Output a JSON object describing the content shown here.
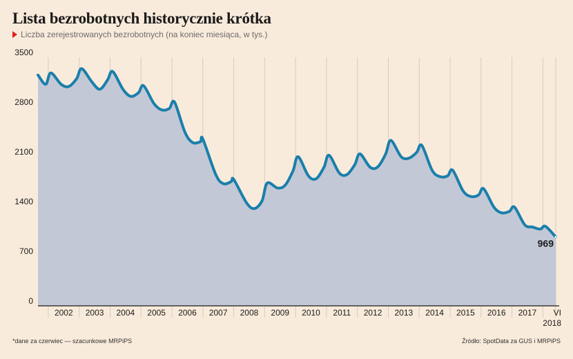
{
  "title": "Lista bezrobotnych historycznie krótka",
  "subtitle": "Liczba zerejestrowanych bezrobotnych (na koniec miesiąca, w tys.)",
  "footnote": "*dane za czerwiec — szacunkowe MRPiPS",
  "source": "Źródło: SpotData za GUS i MRPiPS",
  "colors": {
    "line": "#1a7fab",
    "area": "#c3c8d6",
    "background": "#f9ebdb",
    "accent": "#e0201b"
  },
  "chart_data": {
    "type": "area",
    "title": "Lista bezrobotnych historycznie krótka",
    "subtitle": "Liczba zerejestrowanych bezrobotnych (na koniec miesiąca, w tys.)",
    "xlabel": "",
    "ylabel": "",
    "ylim": [
      0,
      3500
    ],
    "yticks": [
      0,
      700,
      1400,
      2100,
      2800,
      3500
    ],
    "ytick_labels": [
      "0",
      "700",
      "1400",
      "2100",
      "2800",
      "3500"
    ],
    "xtick_labels": [
      "2002",
      "2003",
      "2004",
      "2005",
      "2006",
      "2007",
      "2008",
      "2009",
      "2010",
      "2011",
      "2012",
      "2013",
      "2014",
      "2015",
      "2016",
      "2017",
      "VI"
    ],
    "xtick_sublabel": "2018",
    "grid": "vertical",
    "last_value_label": "969",
    "series": [
      {
        "points": [
          [
            "2001-09",
            3250
          ],
          [
            "2001-12",
            3120
          ],
          [
            "2002-02",
            3280
          ],
          [
            "2002-06",
            3120
          ],
          [
            "2002-09",
            3090
          ],
          [
            "2002-12",
            3200
          ],
          [
            "2003-02",
            3340
          ],
          [
            "2003-06",
            3150
          ],
          [
            "2003-09",
            3050
          ],
          [
            "2003-12",
            3180
          ],
          [
            "2004-02",
            3300
          ],
          [
            "2004-06",
            3050
          ],
          [
            "2004-09",
            2950
          ],
          [
            "2004-12",
            3000
          ],
          [
            "2005-02",
            3100
          ],
          [
            "2005-06",
            2850
          ],
          [
            "2005-09",
            2760
          ],
          [
            "2005-12",
            2780
          ],
          [
            "2006-02",
            2870
          ],
          [
            "2006-06",
            2450
          ],
          [
            "2006-09",
            2300
          ],
          [
            "2006-12",
            2310
          ],
          [
            "2007-01",
            2350
          ],
          [
            "2007-06",
            1850
          ],
          [
            "2007-09",
            1720
          ],
          [
            "2007-12",
            1750
          ],
          [
            "2008-01",
            1780
          ],
          [
            "2008-06",
            1450
          ],
          [
            "2008-09",
            1370
          ],
          [
            "2008-12",
            1480
          ],
          [
            "2009-02",
            1730
          ],
          [
            "2009-06",
            1660
          ],
          [
            "2009-09",
            1700
          ],
          [
            "2009-12",
            1900
          ],
          [
            "2010-02",
            2100
          ],
          [
            "2010-06",
            1830
          ],
          [
            "2010-09",
            1790
          ],
          [
            "2010-12",
            1950
          ],
          [
            "2011-02",
            2120
          ],
          [
            "2011-06",
            1870
          ],
          [
            "2011-09",
            1850
          ],
          [
            "2011-12",
            1990
          ],
          [
            "2012-02",
            2140
          ],
          [
            "2012-06",
            1950
          ],
          [
            "2012-09",
            1960
          ],
          [
            "2012-12",
            2140
          ],
          [
            "2013-02",
            2330
          ],
          [
            "2013-06",
            2100
          ],
          [
            "2013-09",
            2080
          ],
          [
            "2013-12",
            2160
          ],
          [
            "2014-02",
            2260
          ],
          [
            "2014-06",
            1910
          ],
          [
            "2014-09",
            1820
          ],
          [
            "2014-12",
            1830
          ],
          [
            "2015-02",
            1910
          ],
          [
            "2015-06",
            1620
          ],
          [
            "2015-09",
            1540
          ],
          [
            "2015-12",
            1560
          ],
          [
            "2016-02",
            1650
          ],
          [
            "2016-06",
            1390
          ],
          [
            "2016-09",
            1310
          ],
          [
            "2016-12",
            1330
          ],
          [
            "2017-02",
            1390
          ],
          [
            "2017-06",
            1140
          ],
          [
            "2017-09",
            1110
          ],
          [
            "2017-12",
            1080
          ],
          [
            "2018-02",
            1120
          ],
          [
            "2018-06",
            969
          ]
        ]
      }
    ]
  }
}
